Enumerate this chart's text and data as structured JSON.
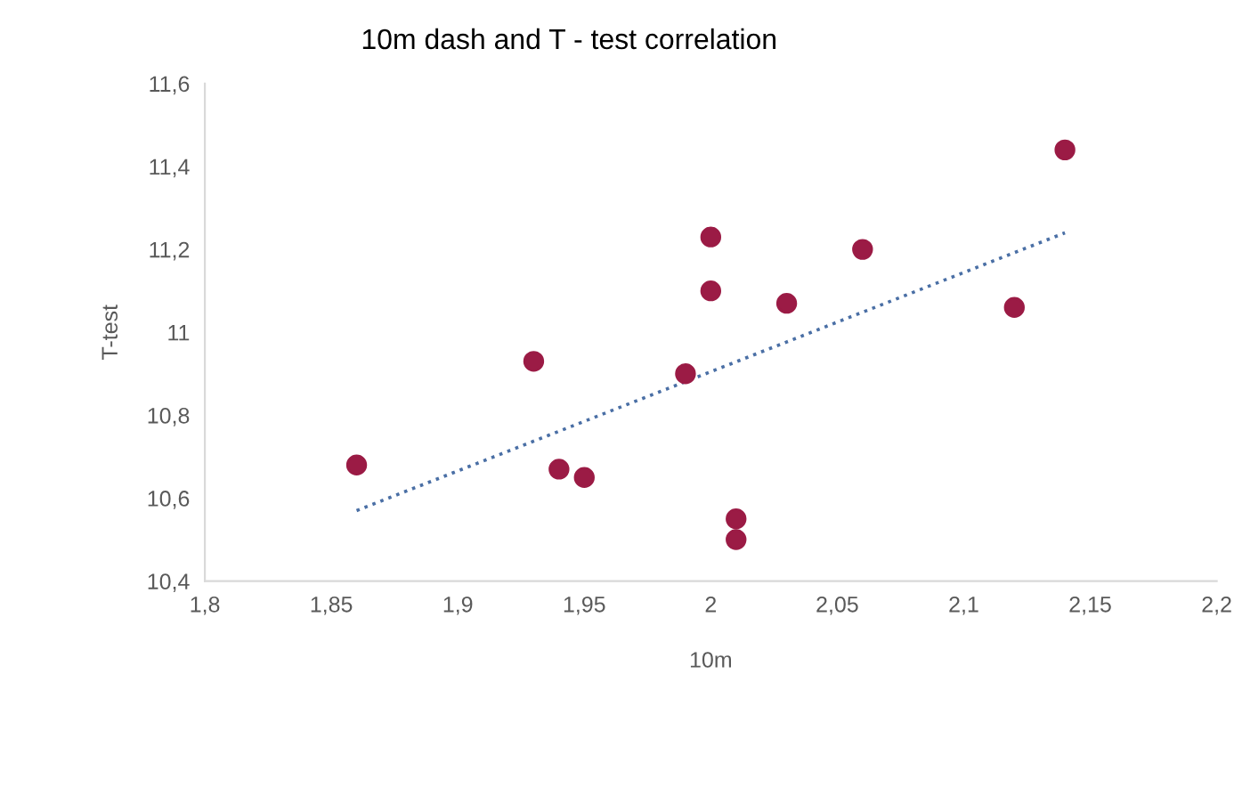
{
  "chart_data": {
    "type": "scatter",
    "title": "10m dash and T - test correlation",
    "xlabel": "10m",
    "ylabel": "T-test",
    "xlim": [
      1.8,
      2.2
    ],
    "ylim": [
      10.4,
      11.6
    ],
    "xticks": [
      {
        "value": 1.8,
        "label": "1,8"
      },
      {
        "value": 1.85,
        "label": "1,85"
      },
      {
        "value": 1.9,
        "label": "1,9"
      },
      {
        "value": 1.95,
        "label": "1,95"
      },
      {
        "value": 2,
        "label": "2"
      },
      {
        "value": 2.05,
        "label": "2,05"
      },
      {
        "value": 2.1,
        "label": "2,1"
      },
      {
        "value": 2.15,
        "label": "2,15"
      },
      {
        "value": 2.2,
        "label": "2,2"
      }
    ],
    "yticks": [
      {
        "value": 10.4,
        "label": "10,4"
      },
      {
        "value": 10.6,
        "label": "10,6"
      },
      {
        "value": 10.8,
        "label": "10,8"
      },
      {
        "value": 11,
        "label": "11"
      },
      {
        "value": 11.2,
        "label": "11,2"
      },
      {
        "value": 11.4,
        "label": "11,4"
      },
      {
        "value": 11.6,
        "label": "11,6"
      }
    ],
    "grid": false,
    "legend": false,
    "marker": "circle",
    "series": [
      {
        "color": "#9b1b45",
        "x": [
          1.86,
          1.93,
          1.94,
          1.95,
          1.99,
          2.0,
          2.0,
          2.01,
          2.01,
          2.03,
          2.06,
          2.12,
          2.14
        ],
        "values": [
          10.68,
          10.93,
          10.67,
          10.65,
          10.9,
          11.23,
          11.1,
          10.55,
          10.5,
          11.07,
          11.2,
          11.06,
          11.44
        ]
      },
      {
        "type": "line",
        "color": "#4a6fa5",
        "line_style": "dotted",
        "marker": "none",
        "x": [
          1.86,
          2.14
        ],
        "values": [
          10.57,
          11.24
        ]
      }
    ]
  }
}
